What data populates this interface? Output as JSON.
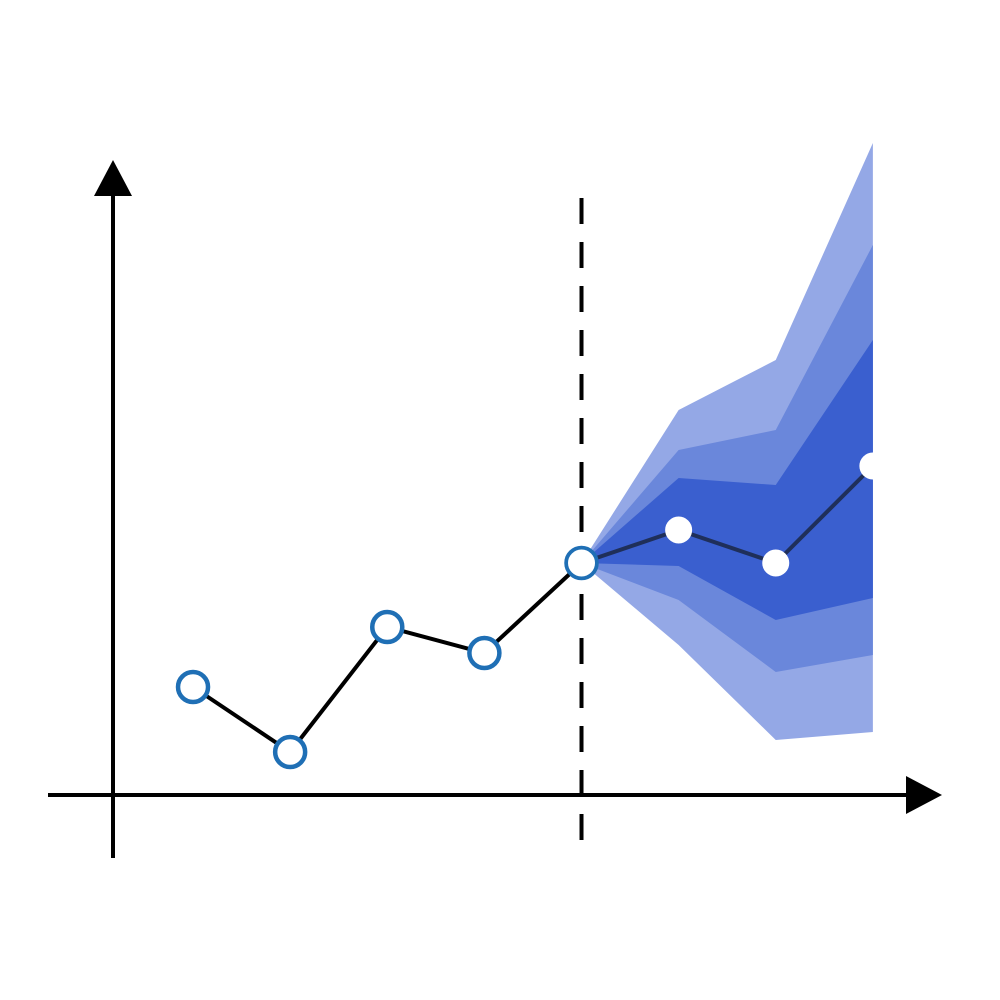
{
  "chart_data": {
    "type": "fan",
    "x": [
      1,
      2,
      3,
      4,
      5,
      6,
      7,
      8
    ],
    "xlim": [
      0,
      9
    ],
    "ylim": [
      0,
      66
    ],
    "forecast_start": 5,
    "series": [
      {
        "color": "#000000",
        "marker_color": "#1f6fb5",
        "values": [
          10.8,
          4.3,
          16.8,
          14.2,
          23.2,
          null,
          null,
          null
        ]
      },
      {
        "color": "#1f2f5a",
        "marker_color": "#ffffff",
        "values": [
          null,
          null,
          null,
          null,
          23.2,
          26.5,
          23.2,
          32.9
        ]
      }
    ],
    "bands": [
      {
        "color": "#94a8e6",
        "lower": [
          null,
          null,
          null,
          null,
          23.2,
          15,
          5.5,
          6.3
        ],
        "upper": [
          null,
          null,
          null,
          null,
          23.2,
          38.5,
          43.5,
          65.2
        ]
      },
      {
        "color": "#6a87db",
        "lower": [
          null,
          null,
          null,
          null,
          23.2,
          19.5,
          12.3,
          14
        ],
        "upper": [
          null,
          null,
          null,
          null,
          23.2,
          34.5,
          36.5,
          55
        ]
      },
      {
        "color": "#3a5fcf",
        "lower": [
          null,
          null,
          null,
          null,
          23.2,
          22.9,
          17.5,
          19.7
        ],
        "upper": [
          null,
          null,
          null,
          null,
          23.2,
          31.7,
          31,
          45.5
        ]
      }
    ]
  }
}
